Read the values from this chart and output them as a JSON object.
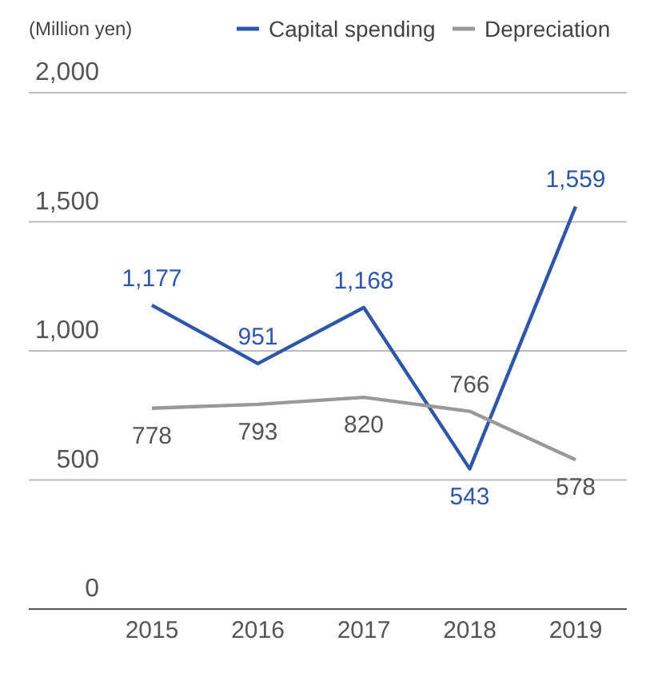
{
  "chart_data": {
    "type": "line",
    "ylabel": "(Million yen)",
    "categories": [
      "2015",
      "2016",
      "2017",
      "2018",
      "2019"
    ],
    "series": [
      {
        "name": "Capital spending",
        "color": "#2f57a8",
        "values": [
          1177,
          951,
          1168,
          543,
          1559
        ],
        "value_labels": [
          "1,177",
          "951",
          "1,168",
          "543",
          "1,559"
        ]
      },
      {
        "name": "Depreciation",
        "color": "#999999",
        "values": [
          778,
          793,
          820,
          766,
          578
        ],
        "value_labels": [
          "778",
          "793",
          "820",
          "766",
          "578"
        ]
      }
    ],
    "ylim": [
      0,
      2000
    ],
    "yticks": [
      0,
      {
        "value": 500,
        "label": "500"
      },
      {
        "value": 1000,
        "label": "1,000"
      },
      {
        "value": 1500,
        "label": "1,500"
      },
      {
        "value": 2000,
        "label": "2,000"
      }
    ],
    "grid": "y",
    "legend": "top right",
    "marker": "none",
    "line_style": "solid"
  }
}
